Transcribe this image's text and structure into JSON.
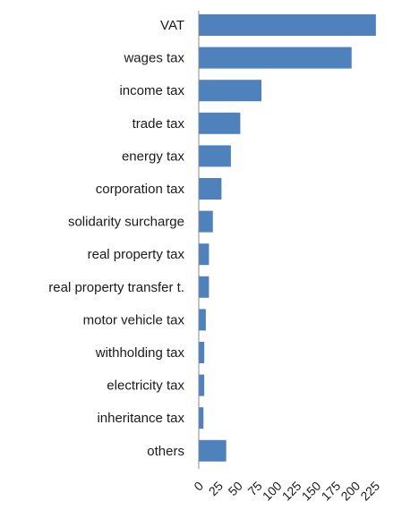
{
  "chart_data": {
    "type": "bar",
    "orientation": "horizontal",
    "categories": [
      "VAT",
      "wages tax",
      "income tax",
      "trade tax",
      "energy tax",
      "corporation tax",
      "solidarity surcharge",
      "real property tax",
      "real property transfer t.",
      "motor vehicle tax",
      "withholding tax",
      "electricity tax",
      "inheritance tax",
      "others"
    ],
    "values": [
      226,
      195,
      80,
      53,
      41,
      29,
      18,
      13,
      13,
      9,
      7,
      7,
      6,
      35
    ],
    "xlim": [
      0,
      225
    ],
    "xticks": [
      "0",
      "25",
      "50",
      "75",
      "100",
      "125",
      "150",
      "175",
      "200",
      "225"
    ],
    "bar_color": "#4f81bd",
    "grid": false,
    "legend": "none"
  }
}
